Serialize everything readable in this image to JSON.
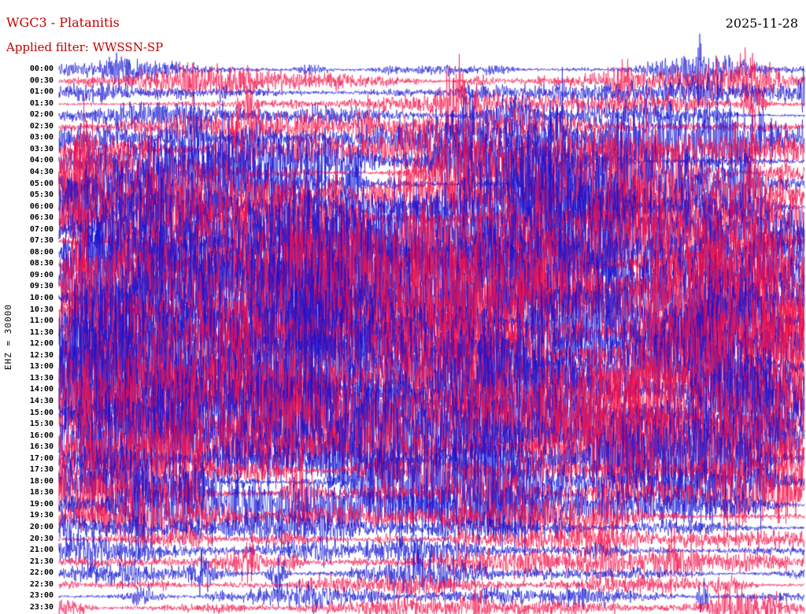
{
  "header": {
    "title": "WGC3 - Platanitis",
    "date": "2025-11-28",
    "filter": "Applied filter: WWSSN-SP"
  },
  "axes": {
    "scale_label": "EHZ = 30000"
  },
  "colors": {
    "trace_blue": "#1212d2",
    "trace_red": "#f21048",
    "title_red": "#c00000",
    "text_black": "#000000",
    "background": "#ffffff"
  },
  "chart_data": {
    "type": "line",
    "subtype": "helicorder-seismogram",
    "station": "WGC3",
    "station_name": "Platanitis",
    "channel": "EHZ",
    "scale": 30000,
    "date": "2025-11-28",
    "filter": "WWSSN-SP",
    "minutes_per_row": 30,
    "legend_position": "none",
    "grid": false,
    "rows": [
      {
        "time": "00:00",
        "color": "blue",
        "activity": 0.35
      },
      {
        "time": "00:30",
        "color": "red",
        "activity": 0.3
      },
      {
        "time": "01:00",
        "color": "blue",
        "activity": 0.35
      },
      {
        "time": "01:30",
        "color": "red",
        "activity": 0.4
      },
      {
        "time": "02:00",
        "color": "blue",
        "activity": 0.35
      },
      {
        "time": "02:30",
        "color": "red",
        "activity": 0.45
      },
      {
        "time": "03:00",
        "color": "blue",
        "activity": 0.6
      },
      {
        "time": "03:30",
        "color": "red",
        "activity": 0.6
      },
      {
        "time": "04:00",
        "color": "blue",
        "activity": 0.7
      },
      {
        "time": "04:30",
        "color": "red",
        "activity": 0.7
      },
      {
        "time": "05:00",
        "color": "blue",
        "activity": 0.8
      },
      {
        "time": "05:30",
        "color": "red",
        "activity": 0.8
      },
      {
        "time": "06:00",
        "color": "blue",
        "activity": 0.85
      },
      {
        "time": "06:30",
        "color": "red",
        "activity": 0.9
      },
      {
        "time": "07:00",
        "color": "blue",
        "activity": 0.9
      },
      {
        "time": "07:30",
        "color": "red",
        "activity": 0.9
      },
      {
        "time": "08:00",
        "color": "blue",
        "activity": 0.9
      },
      {
        "time": "08:30",
        "color": "red",
        "activity": 0.9
      },
      {
        "time": "09:00",
        "color": "blue",
        "activity": 0.95
      },
      {
        "time": "09:30",
        "color": "red",
        "activity": 0.95
      },
      {
        "time": "10:00",
        "color": "blue",
        "activity": 0.95
      },
      {
        "time": "10:30",
        "color": "red",
        "activity": 0.95
      },
      {
        "time": "11:00",
        "color": "blue",
        "activity": 1.0
      },
      {
        "time": "11:30",
        "color": "red",
        "activity": 1.0
      },
      {
        "time": "12:00",
        "color": "blue",
        "activity": 1.0
      },
      {
        "time": "12:30",
        "color": "red",
        "activity": 0.95
      },
      {
        "time": "13:00",
        "color": "blue",
        "activity": 0.95
      },
      {
        "time": "13:30",
        "color": "red",
        "activity": 0.9
      },
      {
        "time": "14:00",
        "color": "blue",
        "activity": 0.95
      },
      {
        "time": "14:30",
        "color": "red",
        "activity": 0.95
      },
      {
        "time": "15:00",
        "color": "blue",
        "activity": 0.9
      },
      {
        "time": "15:30",
        "color": "red",
        "activity": 0.9
      },
      {
        "time": "16:00",
        "color": "blue",
        "activity": 0.85
      },
      {
        "time": "16:30",
        "color": "red",
        "activity": 0.85
      },
      {
        "time": "17:00",
        "color": "blue",
        "activity": 0.8
      },
      {
        "time": "17:30",
        "color": "red",
        "activity": 0.8
      },
      {
        "time": "18:00",
        "color": "blue",
        "activity": 0.75
      },
      {
        "time": "18:30",
        "color": "red",
        "activity": 0.7
      },
      {
        "time": "19:00",
        "color": "blue",
        "activity": 0.6
      },
      {
        "time": "19:30",
        "color": "red",
        "activity": 0.5
      },
      {
        "time": "20:00",
        "color": "blue",
        "activity": 0.45
      },
      {
        "time": "20:30",
        "color": "red",
        "activity": 0.4
      },
      {
        "time": "21:00",
        "color": "blue",
        "activity": 0.4
      },
      {
        "time": "21:30",
        "color": "red",
        "activity": 0.35
      },
      {
        "time": "22:00",
        "color": "blue",
        "activity": 0.35
      },
      {
        "time": "22:30",
        "color": "red",
        "activity": 0.3
      },
      {
        "time": "23:00",
        "color": "blue",
        "activity": 0.3
      },
      {
        "time": "23:30",
        "color": "red",
        "activity": 0.35
      }
    ]
  }
}
